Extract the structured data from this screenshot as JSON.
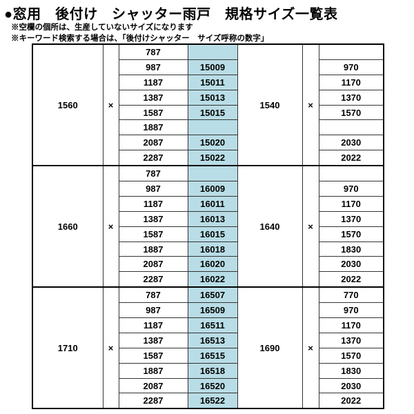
{
  "title": "●窓用　後付け　シャッター雨戸　規格サイズ一覧表",
  "notes": [
    "※空欄の個所は、生産していないサイズになります",
    "※キーワード検索する場合は、「後付けシャッター　サイズ呼称の数字」"
  ],
  "times": "×",
  "groups": [
    {
      "width": "1560",
      "height": "1540",
      "rows": [
        [
          "787",
          "",
          ""
        ],
        [
          "987",
          "15009",
          "970"
        ],
        [
          "1187",
          "15011",
          "1170"
        ],
        [
          "1387",
          "15013",
          "1370"
        ],
        [
          "1587",
          "15015",
          "1570"
        ],
        [
          "1887",
          "",
          ""
        ],
        [
          "2087",
          "15020",
          "2030"
        ],
        [
          "2287",
          "15022",
          "2022"
        ]
      ]
    },
    {
      "width": "1660",
      "height": "1640",
      "rows": [
        [
          "787",
          "",
          ""
        ],
        [
          "987",
          "16009",
          "970"
        ],
        [
          "1187",
          "16011",
          "1170"
        ],
        [
          "1387",
          "16013",
          "1370"
        ],
        [
          "1587",
          "16015",
          "1570"
        ],
        [
          "1887",
          "16018",
          "1830"
        ],
        [
          "2087",
          "16020",
          "2030"
        ],
        [
          "2287",
          "16022",
          "2022"
        ]
      ]
    },
    {
      "width": "1710",
      "height": "1690",
      "rows": [
        [
          "787",
          "16507",
          "770"
        ],
        [
          "987",
          "16509",
          "970"
        ],
        [
          "1187",
          "16511",
          "1170"
        ],
        [
          "1387",
          "16513",
          "1370"
        ],
        [
          "1587",
          "16515",
          "1570"
        ],
        [
          "1887",
          "16518",
          "1830"
        ],
        [
          "2087",
          "16520",
          "2030"
        ],
        [
          "2287",
          "16522",
          "2022"
        ]
      ]
    }
  ],
  "colors": {
    "code_bg": "#b9dde6"
  }
}
